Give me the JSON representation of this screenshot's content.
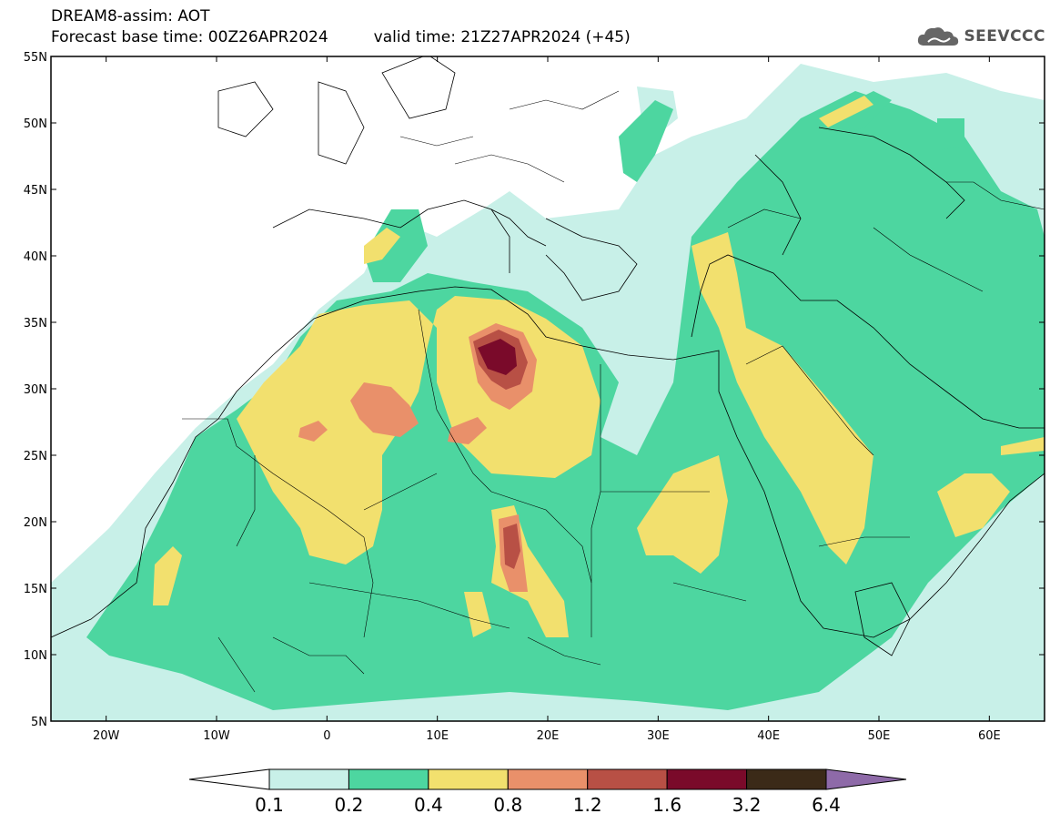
{
  "header": {
    "line1": "DREAM8-assim: AOT",
    "base_time": "Forecast base time: 00Z26APR2024",
    "valid_time": "valid time: 21Z27APR2024 (+45)"
  },
  "logo": {
    "text": "SEEVCCC"
  },
  "map": {
    "lon_range": [
      -25,
      65
    ],
    "lat_range": [
      5,
      55
    ],
    "lat_labels": [
      "5N",
      "10N",
      "15N",
      "20N",
      "25N",
      "30N",
      "35N",
      "40N",
      "45N",
      "50N",
      "55N"
    ],
    "lon_labels": [
      "20W",
      "10W",
      "0",
      "10E",
      "20E",
      "30E",
      "40E",
      "50E",
      "60E"
    ]
  },
  "colorbar": {
    "labels": [
      "0.1",
      "0.2",
      "0.4",
      "0.8",
      "1.2",
      "1.6",
      "3.2",
      "6.4"
    ],
    "colors": [
      "#ffffff",
      "#c8f0e8",
      "#4dd6a0",
      "#f2e06e",
      "#e9906a",
      "#b85045",
      "#7a0a2a",
      "#3b2a18",
      "#8e6aa8"
    ]
  }
}
